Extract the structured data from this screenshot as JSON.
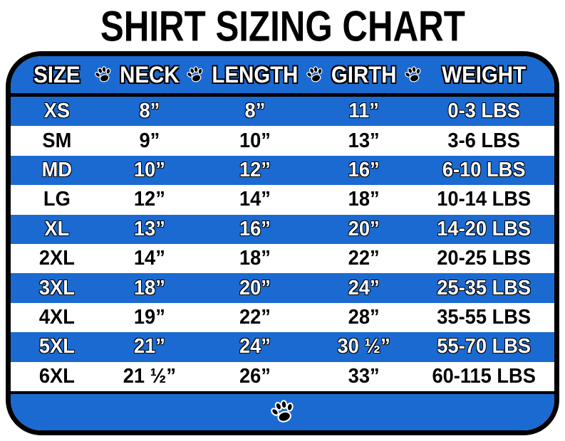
{
  "title": "SHIRT SIZING CHART",
  "colors": {
    "row_blue": "#1b6ad1",
    "border_black": "#000000",
    "text_white": "#ffffff",
    "text_black": "#000000"
  },
  "icons": {
    "header_separator": "paw-print-icon",
    "footer": "paw-print-icon"
  },
  "chart_data": {
    "type": "table",
    "title": "SHIRT SIZING CHART",
    "columns": [
      "SIZE",
      "NECK",
      "LENGTH",
      "GIRTH",
      "WEIGHT"
    ],
    "rows": [
      [
        "XS",
        "8”",
        "8”",
        "11”",
        "0-3 LBS"
      ],
      [
        "SM",
        "9”",
        "10”",
        "13”",
        "3-6 LBS"
      ],
      [
        "MD",
        "10”",
        "12”",
        "16”",
        "6-10 LBS"
      ],
      [
        "LG",
        "12”",
        "14”",
        "18”",
        "10-14 LBS"
      ],
      [
        "XL",
        "13”",
        "16”",
        "20”",
        "14-20 LBS"
      ],
      [
        "2XL",
        "14”",
        "18”",
        "22”",
        "20-25 LBS"
      ],
      [
        "3XL",
        "18”",
        "20”",
        "24”",
        "25-35 LBS"
      ],
      [
        "4XL",
        "19”",
        "22”",
        "28”",
        "35-55 LBS"
      ],
      [
        "5XL",
        "21”",
        "24”",
        "30 ½”",
        "55-70 LBS"
      ],
      [
        "6XL",
        "21 ½”",
        "26”",
        "33”",
        "60-115 LBS"
      ]
    ]
  }
}
